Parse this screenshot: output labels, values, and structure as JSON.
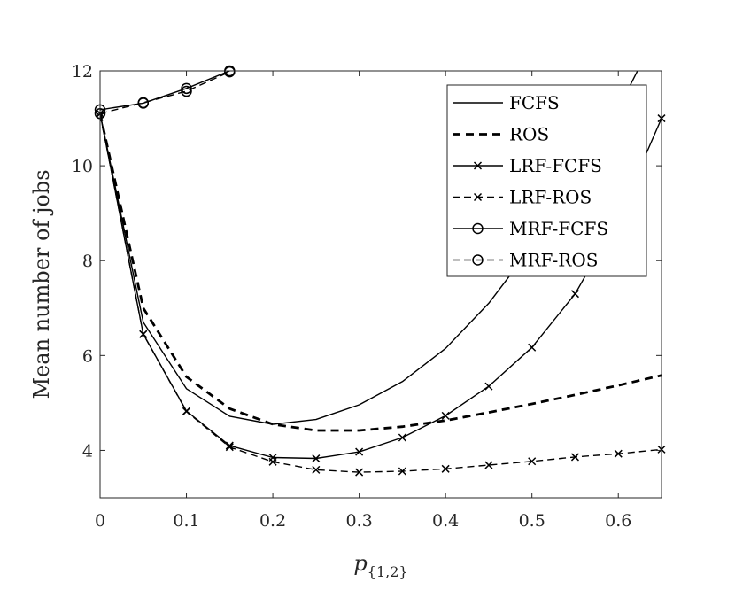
{
  "chart_data": {
    "type": "line",
    "xlabel": "p",
    "xlabel_subscript": "{1,2}",
    "ylabel": "Mean number of jobs",
    "xlim": [
      0,
      0.65
    ],
    "ylim": [
      3,
      12
    ],
    "xticks": [
      0,
      0.1,
      0.2,
      0.3,
      0.4,
      0.5,
      0.6
    ],
    "xtick_labels": [
      "0",
      "0.1",
      "0.2",
      "0.3",
      "0.4",
      "0.5",
      "0.6"
    ],
    "yticks": [
      4,
      6,
      8,
      10,
      12
    ],
    "ytick_labels": [
      "4",
      "6",
      "8",
      "10",
      "12"
    ],
    "grid": false,
    "legend_position": "top-right",
    "series": [
      {
        "name": "FCFS",
        "style": "solid",
        "marker": "none",
        "x": [
          0,
          0.05,
          0.1,
          0.15,
          0.2,
          0.25,
          0.3,
          0.35,
          0.4,
          0.45,
          0.5,
          0.55,
          0.6,
          0.65
        ],
        "y": [
          11.1,
          6.7,
          5.3,
          4.72,
          4.55,
          4.65,
          4.96,
          5.45,
          6.15,
          7.1,
          8.3,
          9.7,
          11.2,
          13.0
        ]
      },
      {
        "name": "ROS",
        "style": "dashed-bold",
        "marker": "none",
        "x": [
          0,
          0.05,
          0.1,
          0.15,
          0.2,
          0.25,
          0.3,
          0.35,
          0.4,
          0.45,
          0.5,
          0.55,
          0.6,
          0.65
        ],
        "y": [
          11.1,
          7.0,
          5.55,
          4.88,
          4.55,
          4.42,
          4.42,
          4.5,
          4.63,
          4.8,
          4.98,
          5.17,
          5.37,
          5.58
        ]
      },
      {
        "name": "LRF-FCFS",
        "style": "solid",
        "marker": "x",
        "x": [
          0,
          0.05,
          0.1,
          0.15,
          0.2,
          0.25,
          0.3,
          0.35,
          0.4,
          0.45,
          0.5,
          0.55,
          0.6,
          0.65
        ],
        "y": [
          11.1,
          6.45,
          4.83,
          4.1,
          3.85,
          3.83,
          3.97,
          4.27,
          4.73,
          5.35,
          6.17,
          7.3,
          8.9,
          11.0
        ]
      },
      {
        "name": "LRF-ROS",
        "style": "dashed",
        "marker": "x",
        "x": [
          0,
          0.05,
          0.1,
          0.15,
          0.2,
          0.25,
          0.3,
          0.35,
          0.4,
          0.45,
          0.5,
          0.55,
          0.6,
          0.65
        ],
        "y": [
          11.1,
          6.45,
          4.82,
          4.07,
          3.76,
          3.59,
          3.54,
          3.56,
          3.61,
          3.69,
          3.77,
          3.86,
          3.93,
          4.02
        ]
      },
      {
        "name": "MRF-FCFS",
        "style": "solid",
        "marker": "o",
        "x": [
          0,
          0.05,
          0.1,
          0.15
        ],
        "y": [
          11.18,
          11.32,
          11.63,
          12.0
        ]
      },
      {
        "name": "MRF-ROS",
        "style": "dashed",
        "marker": "o",
        "x": [
          0,
          0.05,
          0.1,
          0.15
        ],
        "y": [
          11.1,
          11.33,
          11.57,
          11.98
        ]
      }
    ]
  }
}
